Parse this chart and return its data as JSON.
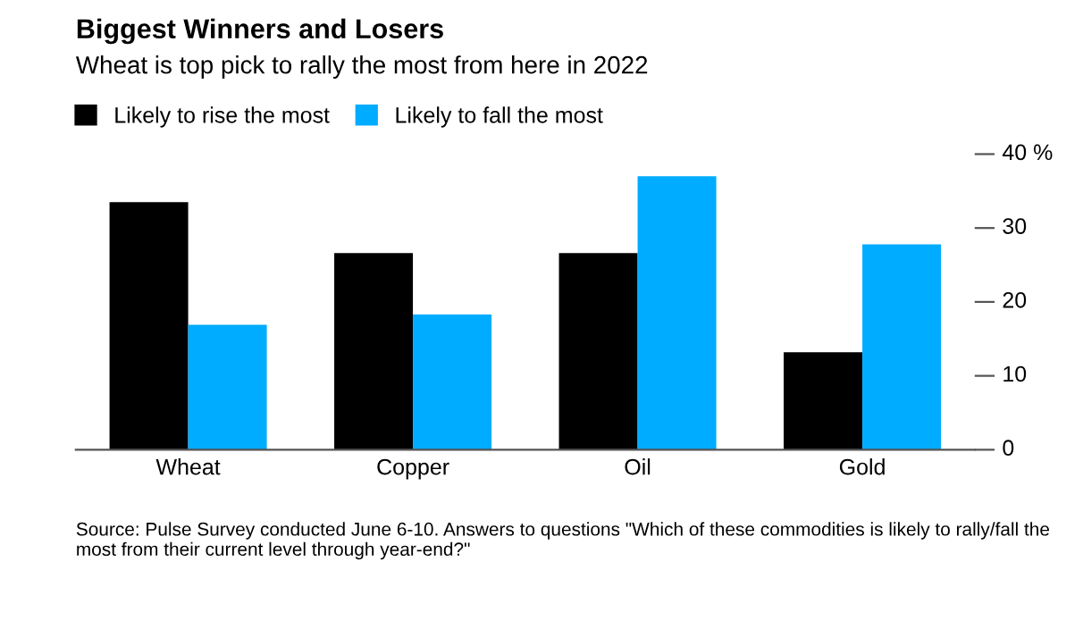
{
  "chart_data": {
    "type": "bar",
    "title": "Biggest Winners and Losers",
    "subtitle": "Wheat is top pick to rally the most from here in 2022",
    "categories": [
      "Wheat",
      "Copper",
      "Oil",
      "Gold"
    ],
    "series": [
      {
        "name": "Likely to rise the most",
        "color": "#000000",
        "values": [
          33.5,
          26.6,
          26.6,
          13.2
        ]
      },
      {
        "name": "Likely to fall the most",
        "color": "#00acff",
        "values": [
          16.9,
          18.3,
          37.0,
          27.8
        ]
      }
    ],
    "ylim": [
      0,
      40
    ],
    "yticks": [
      {
        "value": 0,
        "label": "0"
      },
      {
        "value": 10,
        "label": "10"
      },
      {
        "value": 20,
        "label": "20"
      },
      {
        "value": 30,
        "label": "30"
      },
      {
        "value": 40,
        "label": "40 %"
      }
    ],
    "legend": "top left",
    "grid": false,
    "annotations": [
      "Source: Pulse Survey conducted June 6-10. Answers to questions \"Which of these commodities is likely to rally/fall the most from their current level through year-end?\""
    ]
  }
}
